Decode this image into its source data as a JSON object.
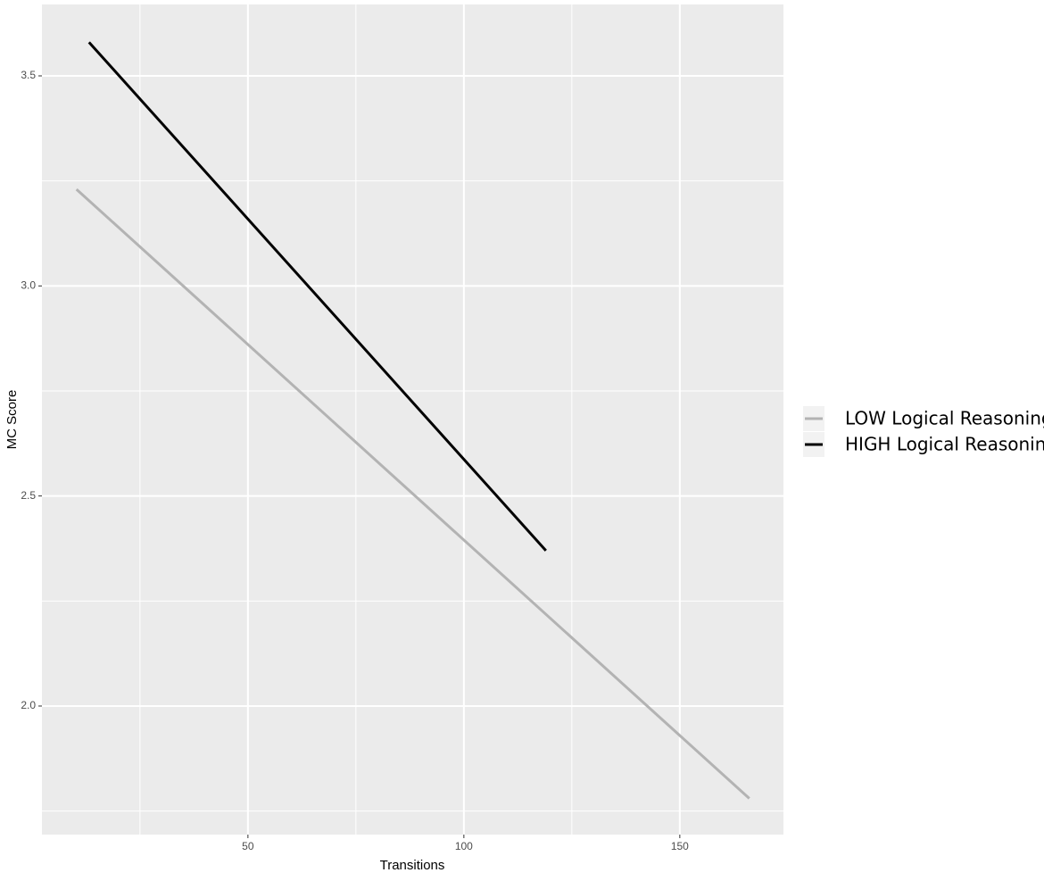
{
  "chart_data": {
    "type": "line",
    "xlabel": "Transitions",
    "ylabel": "MC Score",
    "series": [
      {
        "name": "LOW Logical Reasoning",
        "color": "#b3b3b3",
        "x": [
          10.3,
          166.1
        ],
        "values": [
          3.23,
          1.78
        ]
      },
      {
        "name": "HIGH Logical Reasoning",
        "color": "#000000",
        "x": [
          13.2,
          119.0
        ],
        "values": [
          3.58,
          2.37
        ]
      }
    ],
    "xlim": [
      2.3,
      174
    ],
    "xticks": [
      50,
      100,
      150
    ],
    "ylim": [
      1.694,
      3.67
    ],
    "yticks": [
      {
        "value": 2,
        "label": "2.0"
      },
      2.5,
      {
        "value": 3,
        "label": "3.0"
      },
      3.5
    ],
    "grid": true,
    "legend": "right"
  }
}
